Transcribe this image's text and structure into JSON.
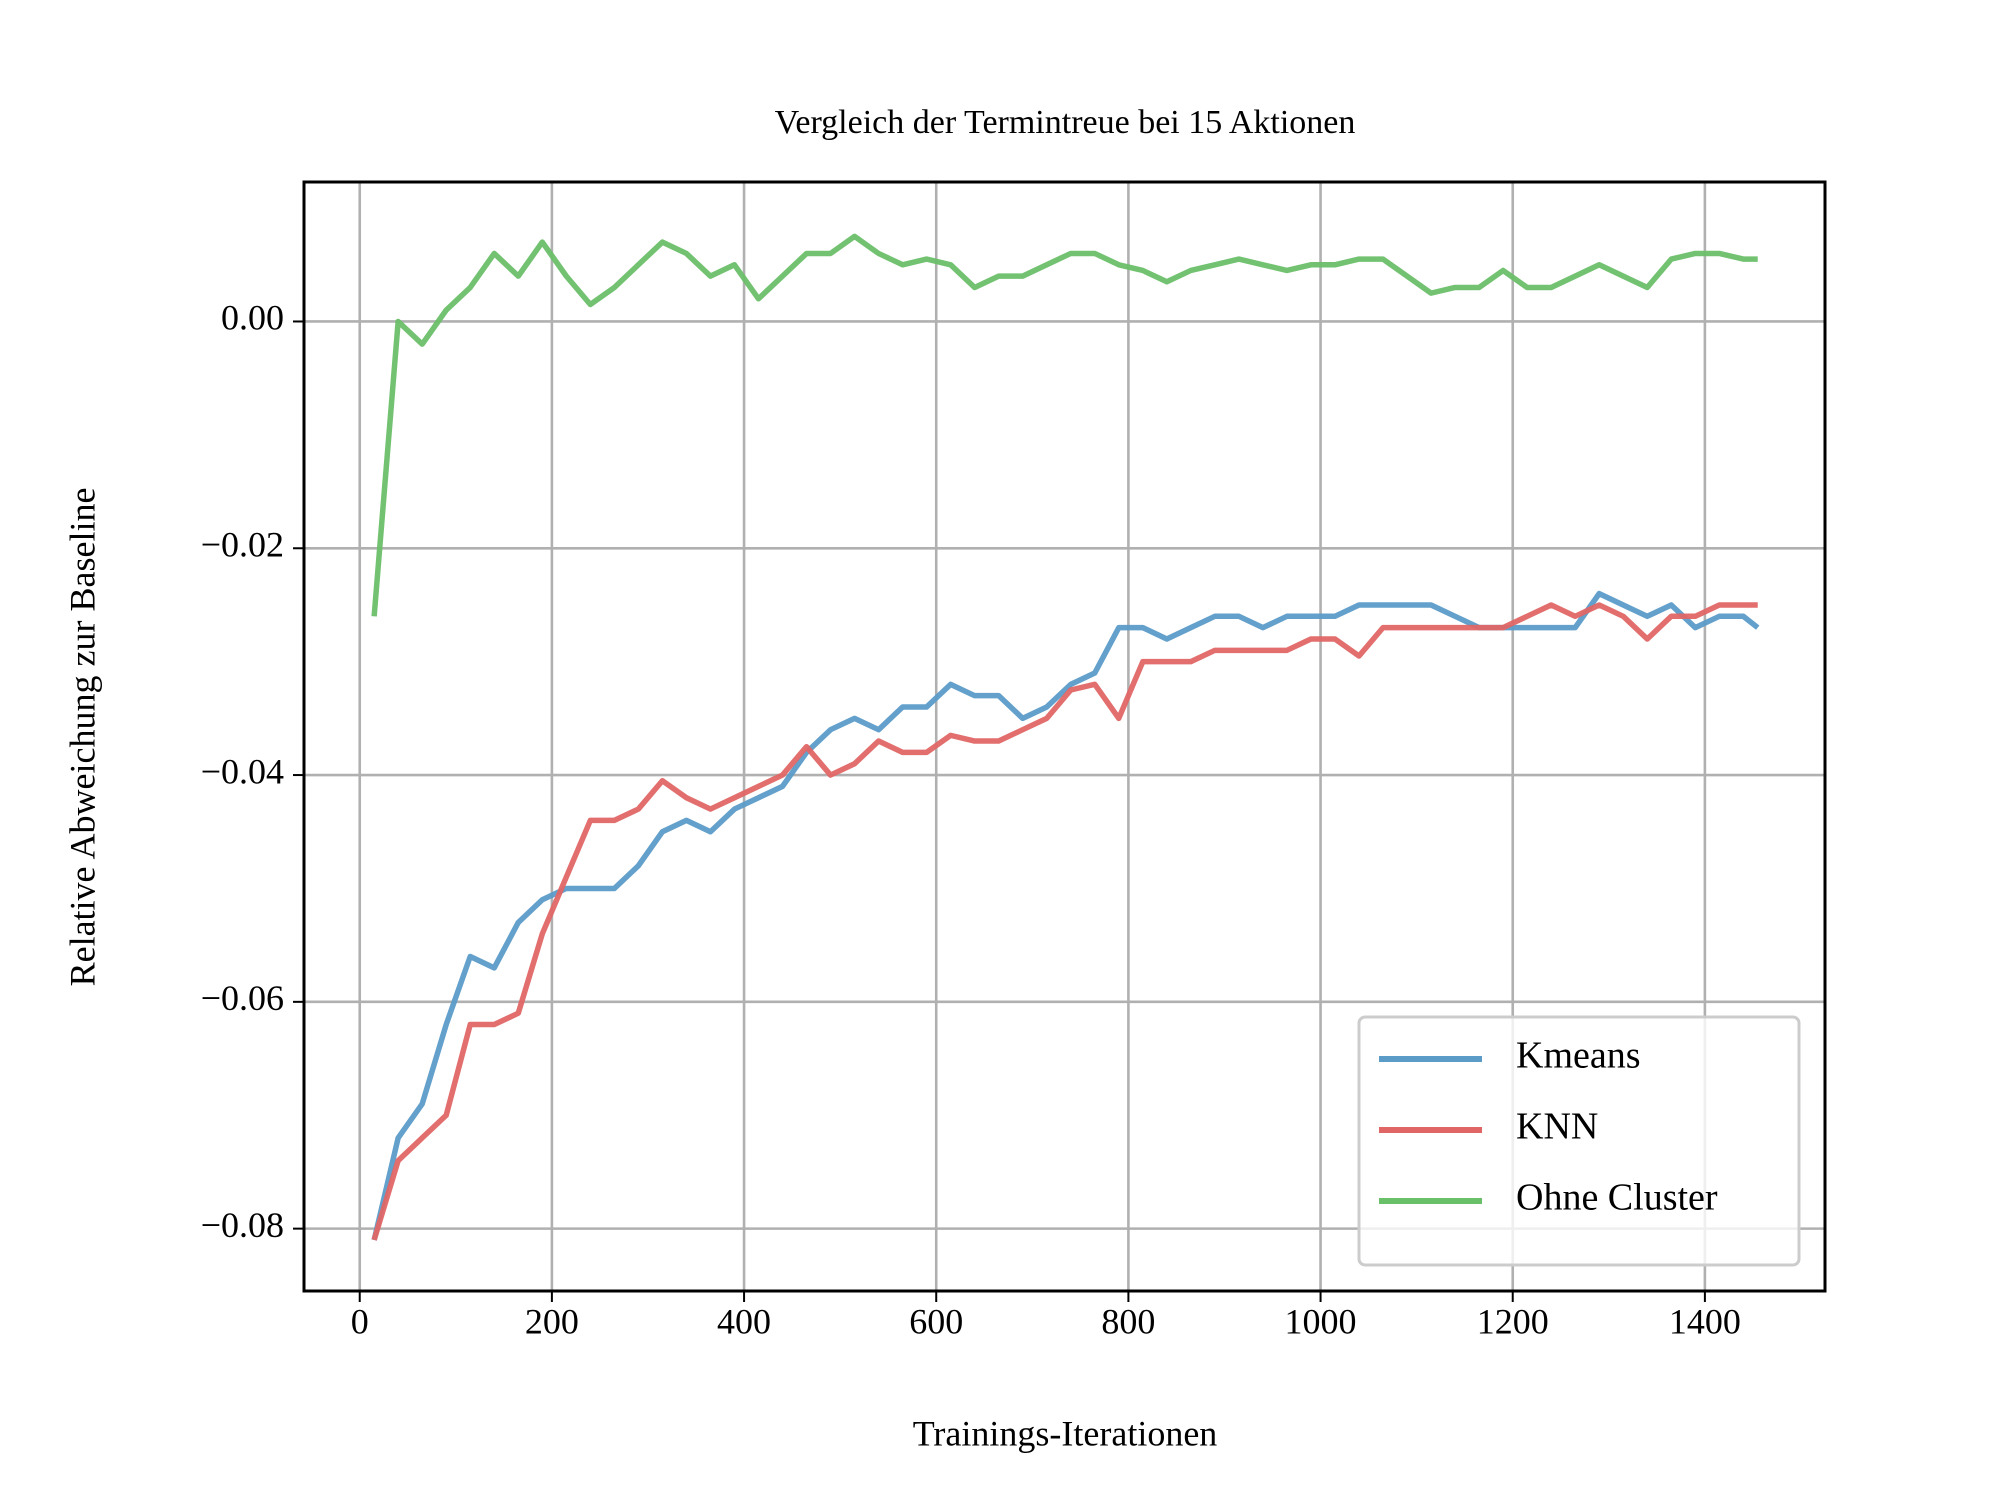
{
  "chart_data": {
    "type": "line",
    "title": "Vergleich der Termintreue bei 15 Aktionen",
    "x_label": "Trainings-Iterationen",
    "y_label": "Relative Abweichung zur Baseline",
    "x": [
      15,
      40,
      65,
      90,
      115,
      140,
      165,
      190,
      215,
      240,
      265,
      290,
      315,
      340,
      365,
      390,
      415,
      440,
      465,
      490,
      515,
      540,
      565,
      590,
      615,
      640,
      665,
      690,
      715,
      740,
      765,
      790,
      815,
      840,
      865,
      890,
      915,
      940,
      965,
      990,
      1015,
      1040,
      1065,
      1090,
      1115,
      1140,
      1165,
      1190,
      1215,
      1240,
      1265,
      1290,
      1315,
      1340,
      1365,
      1390,
      1415,
      1440,
      1455
    ],
    "series": [
      {
        "name": "Kmeans",
        "color": "#5b9bc8",
        "values": [
          -0.081,
          -0.072,
          -0.069,
          -0.062,
          -0.056,
          -0.057,
          -0.053,
          -0.051,
          -0.05,
          -0.05,
          -0.05,
          -0.048,
          -0.045,
          -0.044,
          -0.045,
          -0.043,
          -0.042,
          -0.041,
          -0.038,
          -0.036,
          -0.035,
          -0.036,
          -0.034,
          -0.034,
          -0.032,
          -0.033,
          -0.033,
          -0.035,
          -0.034,
          -0.032,
          -0.031,
          -0.027,
          -0.027,
          -0.028,
          -0.027,
          -0.026,
          -0.026,
          -0.027,
          -0.026,
          -0.026,
          -0.026,
          -0.025,
          -0.025,
          -0.025,
          -0.025,
          -0.026,
          -0.027,
          -0.027,
          -0.027,
          -0.027,
          -0.027,
          -0.024,
          -0.025,
          -0.026,
          -0.025,
          -0.027,
          -0.026,
          -0.026,
          -0.027
        ]
      },
      {
        "name": "KNN",
        "color": "#e06666",
        "values": [
          -0.081,
          -0.074,
          -0.072,
          -0.07,
          -0.062,
          -0.062,
          -0.061,
          -0.054,
          -0.049,
          -0.044,
          -0.044,
          -0.043,
          -0.0405,
          -0.042,
          -0.043,
          -0.042,
          -0.041,
          -0.04,
          -0.0375,
          -0.04,
          -0.039,
          -0.037,
          -0.038,
          -0.038,
          -0.0365,
          -0.037,
          -0.037,
          -0.036,
          -0.035,
          -0.0325,
          -0.032,
          -0.035,
          -0.03,
          -0.03,
          -0.03,
          -0.029,
          -0.029,
          -0.029,
          -0.029,
          -0.028,
          -0.028,
          -0.0295,
          -0.027,
          -0.027,
          -0.027,
          -0.027,
          -0.027,
          -0.027,
          -0.026,
          -0.025,
          -0.026,
          -0.025,
          -0.026,
          -0.028,
          -0.026,
          -0.026,
          -0.025,
          -0.025,
          -0.025
        ]
      },
      {
        "name": "Ohne Cluster",
        "color": "#6abf69",
        "values": [
          -0.026,
          0.0,
          -0.002,
          0.001,
          0.003,
          0.006,
          0.004,
          0.007,
          0.004,
          0.0015,
          0.003,
          0.005,
          0.007,
          0.006,
          0.004,
          0.005,
          0.002,
          0.004,
          0.006,
          0.006,
          0.0075,
          0.006,
          0.005,
          0.0055,
          0.005,
          0.003,
          0.004,
          0.004,
          0.005,
          0.006,
          0.006,
          0.005,
          0.0045,
          0.0035,
          0.0045,
          0.005,
          0.0055,
          0.005,
          0.0045,
          0.005,
          0.005,
          0.0055,
          0.0055,
          0.004,
          0.0025,
          0.003,
          0.003,
          0.0045,
          0.003,
          0.003,
          0.004,
          0.005,
          0.004,
          0.003,
          0.0055,
          0.006,
          0.006,
          0.0055,
          0.0055
        ]
      }
    ],
    "xlim": [
      -58,
      1525
    ],
    "ylim": [
      -0.0855,
      0.0123
    ],
    "xticks": [
      0,
      200,
      400,
      600,
      800,
      1000,
      1200,
      1400
    ],
    "yticks": [
      {
        "value": -0.08,
        "label": "−0.08"
      },
      {
        "value": -0.06,
        "label": "−0.06"
      },
      {
        "value": -0.04,
        "label": "−0.04"
      },
      {
        "value": -0.02,
        "label": "−0.02"
      },
      {
        "value": 0,
        "label": "0.00"
      }
    ],
    "grid": true,
    "legend": "lower right"
  }
}
